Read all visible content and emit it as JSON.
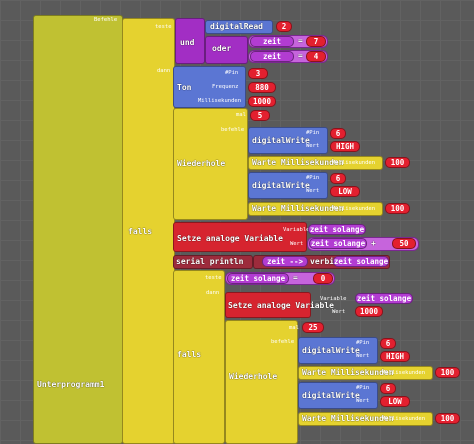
{
  "subroutine": {
    "label": "Unterprogramm1",
    "commands": "Befehle"
  },
  "if_1": {
    "label": "falls",
    "test": "teste",
    "then": "dann",
    "condition": {
      "and": "und",
      "digital_read": {
        "label": "digitalRead",
        "pin": 2
      },
      "or": "oder",
      "compare_1": {
        "left": "zeit",
        "op": "=",
        "right": 7
      },
      "compare_2": {
        "left": "zeit",
        "op": "=",
        "right": 4
      }
    },
    "tone": {
      "label": "Ton",
      "pin_label": "#Pin",
      "pin": 3,
      "frequency_label": "Frequenz",
      "frequency": 880,
      "duration_label": "Millisekunden",
      "duration": 1000
    },
    "repeat": {
      "label": "Wiederhole",
      "times_label": "mal",
      "times": 5,
      "body_label": "befehle",
      "body": [
        {
          "label": "digitalWrite",
          "pin_label": "#Pin",
          "pin": 6,
          "value_label": "Wert",
          "value": "HIGH"
        },
        {
          "label": "Warte Millisekunden",
          "param_label": "Millisekunden",
          "value": 100
        },
        {
          "label": "digitalWrite",
          "pin_label": "#Pin",
          "pin": 6,
          "value_label": "Wert",
          "value": "LOW"
        },
        {
          "label": "Warte Millisekunden",
          "param_label": "Millisekunden",
          "value": 100
        }
      ]
    },
    "set_1": {
      "label": "Setze analoge Variable",
      "variable_label": "Variable",
      "variable": "zeit solange",
      "value_label": "Wert",
      "value": {
        "left": "zeit solange",
        "op": "+",
        "right": 50
      }
    },
    "serial": {
      "label": "serial println",
      "text": "zeit -->",
      "join": "verbinde",
      "value": "zeit solange"
    },
    "if_2": {
      "label": "falls",
      "test": "teste",
      "then": "dann",
      "condition": {
        "left": "zeit solange",
        "op": "=",
        "right": 0
      },
      "set": {
        "label": "Setze analoge Variable",
        "variable_label": "Variable",
        "variable": "zeit solange",
        "value_label": "Wert",
        "value": 1000
      },
      "repeat": {
        "label": "Wiederhole",
        "times_label": "mal",
        "times": 25,
        "body_label": "befehle",
        "body": [
          {
            "label": "digitalWrite",
            "pin_label": "#Pin",
            "pin": 6,
            "value_label": "Wert",
            "value": "HIGH"
          },
          {
            "label": "Warte Millisekunden",
            "param_label": "Millisekunden",
            "value": 100
          },
          {
            "label": "digitalWrite",
            "pin_label": "#Pin",
            "pin": 6,
            "value_label": "Wert",
            "value": "LOW"
          },
          {
            "label": "Warte Millisekunden",
            "param_label": "Millisekunden",
            "value": 100
          }
        ]
      }
    }
  }
}
